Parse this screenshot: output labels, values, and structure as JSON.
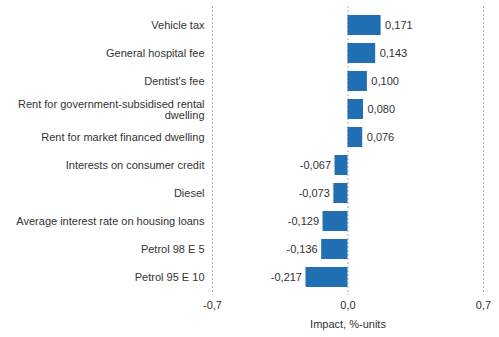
{
  "chart_data": {
    "type": "bar",
    "orientation": "horizontal",
    "categories": [
      "Vehicle tax",
      "General hospital fee",
      "Dentist's fee",
      "Rent for government-subsidised rental dwelling",
      "Rent for market financed dwelling",
      "Interests on consumer credit",
      "Diesel",
      "Average interest rate on housing loans",
      "Petrol 98 E 5",
      "Petrol 95 E 10"
    ],
    "values": [
      0.171,
      0.143,
      0.1,
      0.08,
      0.076,
      -0.067,
      -0.073,
      -0.129,
      -0.136,
      -0.217
    ],
    "value_labels": [
      "0,171",
      "0,143",
      "0,100",
      "0,080",
      "0,076",
      "-0,067",
      "-0,073",
      "-0,129",
      "-0,136",
      "-0,217"
    ],
    "data_labels": true,
    "color": "#1f6fb2",
    "x_label": "Impact, %-units",
    "xlim": [
      -0.7,
      0.7
    ],
    "xticks": [
      {
        "value": -0.7,
        "label": "-0,7"
      },
      {
        "value": 0,
        "label": "0,0"
      },
      {
        "value": 0.7,
        "label": "0,7"
      }
    ],
    "grid": true
  }
}
